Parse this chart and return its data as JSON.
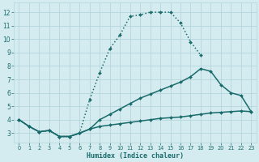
{
  "xlabel": "Humidex (Indice chaleur)",
  "bg_color": "#d4ecf0",
  "grid_color": "#b5d5dc",
  "line_color": "#1a6b6b",
  "xlim": [
    -0.5,
    23.5
  ],
  "ylim": [
    2.3,
    12.7
  ],
  "xticks": [
    0,
    1,
    2,
    3,
    4,
    5,
    6,
    7,
    8,
    9,
    10,
    11,
    12,
    13,
    14,
    15,
    16,
    17,
    18,
    19,
    20,
    21,
    22,
    23
  ],
  "yticks": [
    3,
    4,
    5,
    6,
    7,
    8,
    9,
    10,
    11,
    12
  ],
  "curves": [
    {
      "x": [
        0,
        1,
        2,
        3,
        4,
        5,
        6,
        7,
        8,
        9,
        10,
        11,
        12,
        13,
        14,
        15,
        16,
        17,
        18
      ],
      "y": [
        4.0,
        3.5,
        3.1,
        3.2,
        2.75,
        2.75,
        3.0,
        5.5,
        7.5,
        9.3,
        10.3,
        11.7,
        11.8,
        12.0,
        12.0,
        12.0,
        11.2,
        9.8,
        8.8
      ],
      "ls": ":"
    },
    {
      "x": [
        0,
        1,
        2,
        3,
        4,
        5,
        6,
        7,
        8,
        9,
        10,
        11,
        12,
        13,
        14,
        15,
        16,
        17,
        18,
        19,
        20,
        21,
        22,
        23
      ],
      "y": [
        4.0,
        3.5,
        3.1,
        3.2,
        2.75,
        2.75,
        3.0,
        3.3,
        4.0,
        4.4,
        4.8,
        5.2,
        5.6,
        5.9,
        6.2,
        6.5,
        6.8,
        7.2,
        7.8,
        7.6,
        6.6,
        6.0,
        5.8,
        4.6
      ],
      "ls": "-"
    },
    {
      "x": [
        0,
        1,
        2,
        3,
        4,
        5,
        6,
        7,
        8,
        9,
        10,
        11,
        12,
        13,
        14,
        15,
        16,
        17,
        18,
        19,
        20,
        21,
        22,
        23
      ],
      "y": [
        4.0,
        3.5,
        3.1,
        3.2,
        2.75,
        2.75,
        3.0,
        3.3,
        3.5,
        3.6,
        3.7,
        3.8,
        3.9,
        4.0,
        4.1,
        4.15,
        4.2,
        4.3,
        4.4,
        4.5,
        4.55,
        4.6,
        4.65,
        4.6
      ],
      "ls": "-"
    }
  ]
}
